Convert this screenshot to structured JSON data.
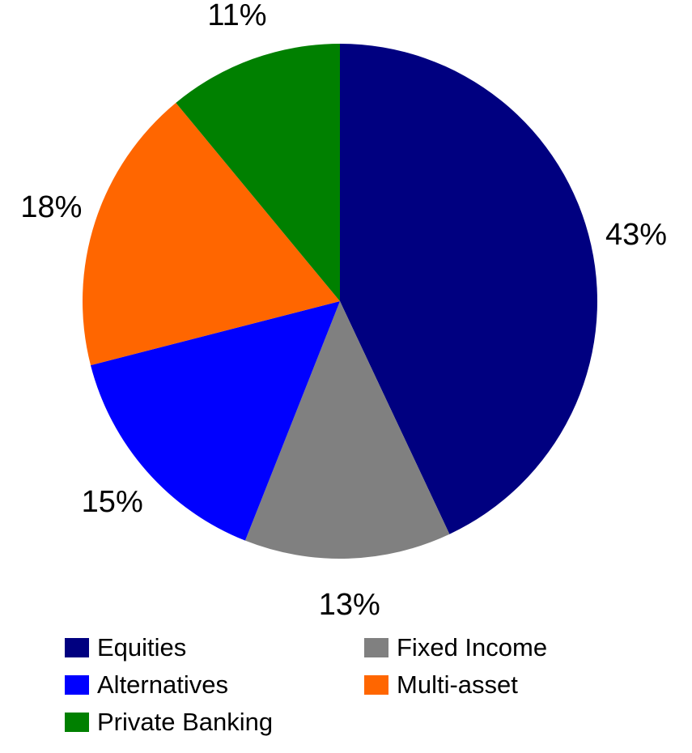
{
  "chart_data": {
    "type": "pie",
    "title": "",
    "slices": [
      {
        "label": "Equities",
        "value": 43,
        "value_label": "43%",
        "color": "#000080"
      },
      {
        "label": "Fixed Income",
        "value": 13,
        "value_label": "13%",
        "color": "#808080"
      },
      {
        "label": "Alternatives",
        "value": 15,
        "value_label": "15%",
        "color": "#0000ff"
      },
      {
        "label": "Multi-asset",
        "value": 18,
        "value_label": "18%",
        "color": "#ff6600"
      },
      {
        "label": "Private Banking",
        "value": 11,
        "value_label": "11%",
        "color": "#008000"
      }
    ],
    "start": "12 o'clock",
    "direction": "clockwise",
    "legend_position": "bottom"
  }
}
